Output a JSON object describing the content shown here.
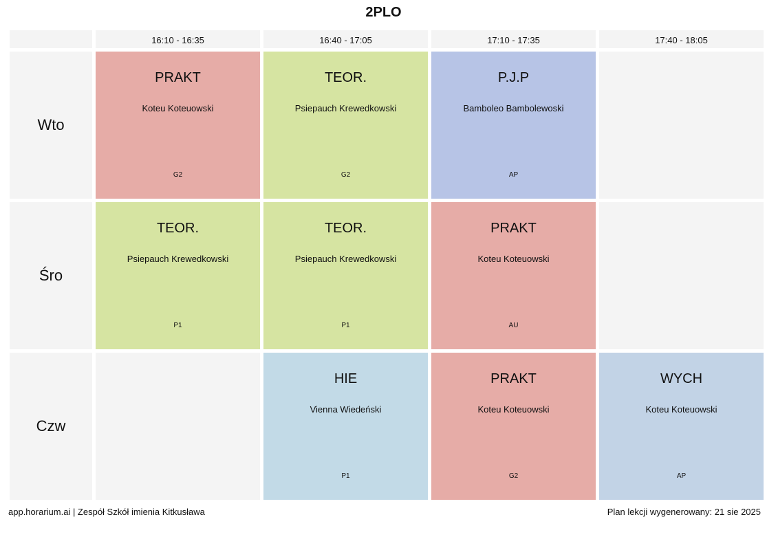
{
  "title": "2PLO",
  "time_slots": [
    "16:10 - 16:35",
    "16:40 - 17:05",
    "17:10 - 17:35",
    "17:40 - 18:05"
  ],
  "colors": {
    "prakt": "#e6aca7",
    "teor": "#d6e4a2",
    "pjp": "#b7c4e6",
    "hie": "#c2dae7",
    "wych": "#c2d3e6",
    "empty": "#f4f4f4"
  },
  "days": [
    {
      "label": "Wto",
      "lessons": [
        {
          "subject": "PRAKT",
          "teacher": "Koteu Koteuowski",
          "room": "G2",
          "color": "#e6aca7"
        },
        {
          "subject": "TEOR.",
          "teacher": "Psiepauch Krewedkowski",
          "room": "G2",
          "color": "#d6e4a2"
        },
        {
          "subject": "P.J.P",
          "teacher": "Bamboleo Bambolewoski",
          "room": "AP",
          "color": "#b7c4e6"
        },
        null
      ]
    },
    {
      "label": "Śro",
      "lessons": [
        {
          "subject": "TEOR.",
          "teacher": "Psiepauch Krewedkowski",
          "room": "P1",
          "color": "#d6e4a2"
        },
        {
          "subject": "TEOR.",
          "teacher": "Psiepauch Krewedkowski",
          "room": "P1",
          "color": "#d6e4a2"
        },
        {
          "subject": "PRAKT",
          "teacher": "Koteu Koteuowski",
          "room": "AU",
          "color": "#e6aca7"
        },
        null
      ]
    },
    {
      "label": "Czw",
      "lessons": [
        null,
        {
          "subject": "HIE",
          "teacher": "Vienna Wiedeński",
          "room": "P1",
          "color": "#c2dae7"
        },
        {
          "subject": "PRAKT",
          "teacher": "Koteu Koteuowski",
          "room": "G2",
          "color": "#e6aca7"
        },
        {
          "subject": "WYCH",
          "teacher": "Koteu Koteuowski",
          "room": "AP",
          "color": "#c2d3e6"
        }
      ]
    }
  ],
  "footer": {
    "left": "app.horarium.ai | Zespół Szkół imienia Kitkusława",
    "right": "Plan lekcji wygenerowany: 21 sie 2025"
  }
}
